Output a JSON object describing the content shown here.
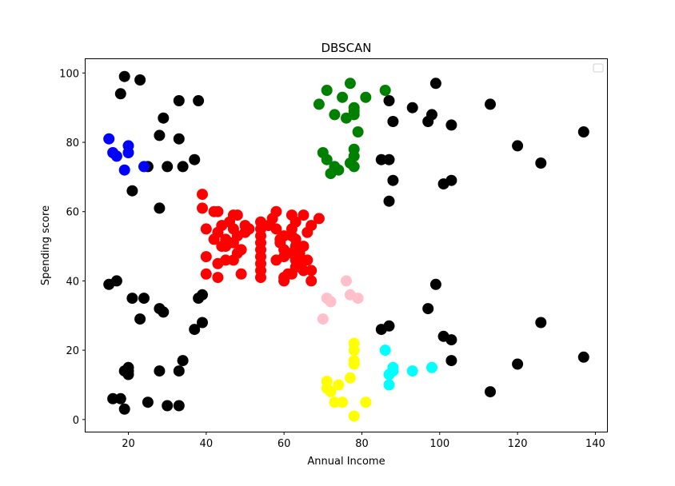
{
  "chart_data": {
    "type": "scatter",
    "title": "DBSCAN",
    "xlabel": "Annual Income",
    "ylabel": "Spending score",
    "xlim": [
      9,
      143
    ],
    "ylim": [
      -3.5,
      104
    ],
    "xticks": [
      20,
      40,
      60,
      80,
      100,
      120,
      140
    ],
    "yticks": [
      0,
      20,
      40,
      60,
      80,
      100
    ],
    "grid": false,
    "legend": {
      "placement": "top-right",
      "entries": []
    },
    "series": [
      {
        "color": "#000000",
        "points": [
          [
            19,
            99
          ],
          [
            23,
            98
          ],
          [
            18,
            94
          ],
          [
            33,
            92
          ],
          [
            38,
            92
          ],
          [
            29,
            87
          ],
          [
            28,
            82
          ],
          [
            33,
            81
          ],
          [
            37,
            75
          ],
          [
            25,
            73
          ],
          [
            30,
            73
          ],
          [
            34,
            73
          ],
          [
            21,
            66
          ],
          [
            28,
            61
          ],
          [
            15,
            39
          ],
          [
            17,
            40
          ],
          [
            21,
            35
          ],
          [
            24,
            35
          ],
          [
            28,
            32
          ],
          [
            29,
            31
          ],
          [
            23,
            29
          ],
          [
            38,
            35
          ],
          [
            39,
            36
          ],
          [
            37,
            26
          ],
          [
            39,
            28
          ],
          [
            20,
            14
          ],
          [
            19,
            14
          ],
          [
            20,
            13
          ],
          [
            20,
            15
          ],
          [
            28,
            14
          ],
          [
            33,
            14
          ],
          [
            34,
            17
          ],
          [
            16,
            6
          ],
          [
            18,
            6
          ],
          [
            19,
            3
          ],
          [
            25,
            5
          ],
          [
            30,
            4
          ],
          [
            33,
            4
          ],
          [
            87,
            92
          ],
          [
            88,
            86
          ],
          [
            93,
            90
          ],
          [
            99,
            97
          ],
          [
            98,
            88
          ],
          [
            97,
            86
          ],
          [
            103,
            85
          ],
          [
            85,
            75
          ],
          [
            87,
            75
          ],
          [
            88,
            69
          ],
          [
            87,
            63
          ],
          [
            101,
            68
          ],
          [
            103,
            69
          ],
          [
            113,
            91
          ],
          [
            120,
            79
          ],
          [
            126,
            74
          ],
          [
            137,
            83
          ],
          [
            85,
            26
          ],
          [
            87,
            27
          ],
          [
            97,
            32
          ],
          [
            99,
            39
          ],
          [
            101,
            24
          ],
          [
            103,
            23
          ],
          [
            103,
            17
          ],
          [
            113,
            8
          ],
          [
            120,
            16
          ],
          [
            126,
            28
          ],
          [
            137,
            18
          ]
        ]
      },
      {
        "color": "#0000ff",
        "points": [
          [
            15,
            81
          ],
          [
            16,
            77
          ],
          [
            17,
            76
          ],
          [
            20,
            79
          ],
          [
            20,
            77
          ],
          [
            19,
            72
          ],
          [
            24,
            73
          ]
        ]
      },
      {
        "color": "#008000",
        "points": [
          [
            77,
            97
          ],
          [
            71,
            95
          ],
          [
            86,
            95
          ],
          [
            75,
            93
          ],
          [
            81,
            93
          ],
          [
            78,
            90
          ],
          [
            78,
            89
          ],
          [
            69,
            91
          ],
          [
            73,
            88
          ],
          [
            76,
            87
          ],
          [
            78,
            88
          ],
          [
            79,
            83
          ],
          [
            70,
            77
          ],
          [
            71,
            75
          ],
          [
            73,
            73
          ],
          [
            72,
            71
          ],
          [
            74,
            72
          ],
          [
            78,
            78
          ],
          [
            78,
            76
          ],
          [
            77,
            74
          ],
          [
            78,
            73
          ]
        ]
      },
      {
        "color": "#ff0000",
        "points": [
          [
            39,
            65
          ],
          [
            39,
            61
          ],
          [
            42,
            60
          ],
          [
            43,
            60
          ],
          [
            40,
            55
          ],
          [
            43,
            54
          ],
          [
            42,
            52
          ],
          [
            45,
            52
          ],
          [
            44,
            50
          ],
          [
            40,
            47
          ],
          [
            43,
            45
          ],
          [
            45,
            46
          ],
          [
            47,
            46
          ],
          [
            49,
            49
          ],
          [
            47,
            51
          ],
          [
            48,
            53
          ],
          [
            47,
            55
          ],
          [
            44,
            56
          ],
          [
            50,
            56
          ],
          [
            47,
            59
          ],
          [
            48,
            59
          ],
          [
            46,
            57
          ],
          [
            45,
            50
          ],
          [
            46,
            51
          ],
          [
            48,
            48
          ],
          [
            43,
            41
          ],
          [
            40,
            42
          ],
          [
            49,
            42
          ],
          [
            51,
            55
          ],
          [
            50,
            54
          ],
          [
            54,
            57
          ],
          [
            54,
            55
          ],
          [
            54,
            53
          ],
          [
            54,
            51
          ],
          [
            54,
            49
          ],
          [
            54,
            47
          ],
          [
            54,
            45
          ],
          [
            54,
            43
          ],
          [
            54,
            41
          ],
          [
            56,
            56
          ],
          [
            57,
            58
          ],
          [
            58,
            60
          ],
          [
            58,
            55
          ],
          [
            58,
            46
          ],
          [
            59,
            51
          ],
          [
            59,
            52
          ],
          [
            60,
            47
          ],
          [
            60,
            49
          ],
          [
            60,
            53
          ],
          [
            61,
            42
          ],
          [
            60,
            41
          ],
          [
            60,
            40
          ],
          [
            62,
            59
          ],
          [
            62,
            55
          ],
          [
            62,
            53
          ],
          [
            63,
            52
          ],
          [
            63,
            50
          ],
          [
            62,
            48
          ],
          [
            63,
            46
          ],
          [
            63,
            44
          ],
          [
            62,
            42
          ],
          [
            63,
            57
          ],
          [
            64,
            48
          ],
          [
            64,
            45
          ],
          [
            64,
            46
          ],
          [
            65,
            59
          ],
          [
            65,
            43
          ],
          [
            65,
            50
          ],
          [
            66,
            54
          ],
          [
            66,
            46
          ],
          [
            67,
            56
          ],
          [
            67,
            43
          ],
          [
            67,
            40
          ],
          [
            69,
            58
          ]
        ]
      },
      {
        "color": "#ffc0cb",
        "points": [
          [
            76,
            40
          ],
          [
            77,
            36
          ],
          [
            79,
            35
          ],
          [
            71,
            35
          ],
          [
            72,
            34
          ],
          [
            70,
            29
          ]
        ]
      },
      {
        "color": "#00ffff",
        "points": [
          [
            86,
            20
          ],
          [
            88,
            15
          ],
          [
            87,
            13
          ],
          [
            88,
            14
          ],
          [
            87,
            10
          ],
          [
            93,
            14
          ],
          [
            98,
            15
          ]
        ]
      },
      {
        "color": "#ffff00",
        "points": [
          [
            78,
            22
          ],
          [
            78,
            20
          ],
          [
            78,
            17
          ],
          [
            78,
            16
          ],
          [
            77,
            12
          ],
          [
            71,
            11
          ],
          [
            71,
            9
          ],
          [
            72,
            8
          ],
          [
            74,
            10
          ],
          [
            73,
            5
          ],
          [
            75,
            5
          ],
          [
            81,
            5
          ],
          [
            78,
            1
          ]
        ]
      }
    ]
  }
}
